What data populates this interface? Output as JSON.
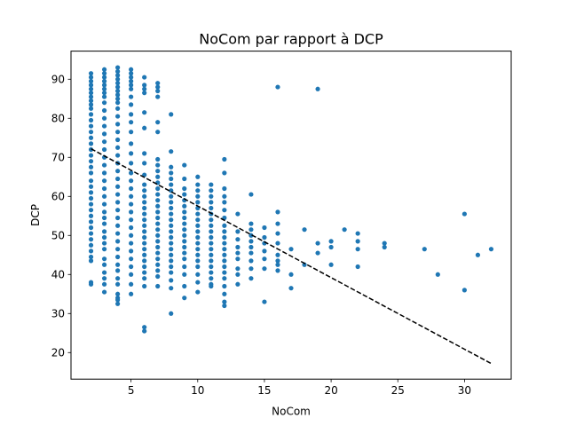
{
  "chart_data": {
    "type": "scatter",
    "title": "NoCom par rapport à DCP",
    "xlabel": "NoCom",
    "ylabel": "DCP",
    "xlim": [
      0.5,
      33.5
    ],
    "ylim": [
      13.2,
      97.2
    ],
    "xticks": [
      5,
      10,
      15,
      20,
      25,
      30
    ],
    "yticks": [
      20,
      30,
      40,
      50,
      60,
      70,
      80,
      90
    ],
    "grid": false,
    "point_color": "#1f77b4",
    "trend_color": "#000000",
    "trend_line": {
      "style": "dashed",
      "points": [
        [
          2,
          72.2
        ],
        [
          32,
          17.2
        ]
      ]
    },
    "points": [
      [
        2,
        91.5
      ],
      [
        2,
        90.5
      ],
      [
        2,
        89.5
      ],
      [
        2,
        88.5
      ],
      [
        2,
        87.5
      ],
      [
        2,
        86.5
      ],
      [
        2,
        85.5
      ],
      [
        2,
        84.5
      ],
      [
        2,
        83.5
      ],
      [
        2,
        82.5
      ],
      [
        2,
        81
      ],
      [
        2,
        79.5
      ],
      [
        2,
        78
      ],
      [
        2,
        76.5
      ],
      [
        2,
        75
      ],
      [
        2,
        73.5
      ],
      [
        2,
        72
      ],
      [
        2,
        70.5
      ],
      [
        2,
        69
      ],
      [
        2,
        67.5
      ],
      [
        2,
        66
      ],
      [
        2,
        64
      ],
      [
        2,
        62.5
      ],
      [
        2,
        61
      ],
      [
        2,
        59.5
      ],
      [
        2,
        58
      ],
      [
        2,
        56.5
      ],
      [
        2,
        55
      ],
      [
        2,
        53.5
      ],
      [
        2,
        52
      ],
      [
        2,
        50.5
      ],
      [
        2,
        49
      ],
      [
        2,
        47.5
      ],
      [
        2,
        46
      ],
      [
        2,
        44.5
      ],
      [
        2,
        43.5
      ],
      [
        2,
        38
      ],
      [
        2,
        37.5
      ],
      [
        3,
        92.5
      ],
      [
        3,
        91.5
      ],
      [
        3,
        90.5
      ],
      [
        3,
        89.5
      ],
      [
        3,
        88.5
      ],
      [
        3,
        87.5
      ],
      [
        3,
        86.5
      ],
      [
        3,
        85.5
      ],
      [
        3,
        84
      ],
      [
        3,
        82
      ],
      [
        3,
        80
      ],
      [
        3,
        78
      ],
      [
        3,
        76
      ],
      [
        3,
        74
      ],
      [
        3,
        72
      ],
      [
        3,
        70
      ],
      [
        3,
        68
      ],
      [
        3,
        66
      ],
      [
        3,
        64
      ],
      [
        3,
        62
      ],
      [
        3,
        60
      ],
      [
        3,
        58
      ],
      [
        3,
        56
      ],
      [
        3,
        54.5
      ],
      [
        3,
        53
      ],
      [
        3,
        51
      ],
      [
        3,
        49.5
      ],
      [
        3,
        48
      ],
      [
        3,
        46.5
      ],
      [
        3,
        44
      ],
      [
        3,
        42.5
      ],
      [
        3,
        40.5
      ],
      [
        3,
        39
      ],
      [
        3,
        37.5
      ],
      [
        3,
        35.5
      ],
      [
        4,
        93
      ],
      [
        4,
        92
      ],
      [
        4,
        91
      ],
      [
        4,
        90
      ],
      [
        4,
        89
      ],
      [
        4,
        88
      ],
      [
        4,
        87
      ],
      [
        4,
        86
      ],
      [
        4,
        85
      ],
      [
        4,
        84
      ],
      [
        4,
        82.5
      ],
      [
        4,
        80.5
      ],
      [
        4,
        78.5
      ],
      [
        4,
        76.5
      ],
      [
        4,
        74.5
      ],
      [
        4,
        72.5
      ],
      [
        4,
        70.5
      ],
      [
        4,
        68.5
      ],
      [
        4,
        66.5
      ],
      [
        4,
        64.5
      ],
      [
        4,
        62.5
      ],
      [
        4,
        60.5
      ],
      [
        4,
        58.5
      ],
      [
        4,
        56.5
      ],
      [
        4,
        54.5
      ],
      [
        4,
        52.5
      ],
      [
        4,
        50.5
      ],
      [
        4,
        48.5
      ],
      [
        4,
        46.5
      ],
      [
        4,
        44.5
      ],
      [
        4,
        42.5
      ],
      [
        4,
        41
      ],
      [
        4,
        39
      ],
      [
        4,
        37.5
      ],
      [
        4,
        35
      ],
      [
        4,
        34
      ],
      [
        4,
        33.5
      ],
      [
        4,
        32.5
      ],
      [
        5,
        92.5
      ],
      [
        5,
        91.5
      ],
      [
        5,
        90.5
      ],
      [
        5,
        89.5
      ],
      [
        5,
        88.5
      ],
      [
        5,
        87.5
      ],
      [
        5,
        85.5
      ],
      [
        5,
        83.5
      ],
      [
        5,
        81
      ],
      [
        5,
        79
      ],
      [
        5,
        76.5
      ],
      [
        5,
        73.5
      ],
      [
        5,
        71
      ],
      [
        5,
        68.5
      ],
      [
        5,
        66
      ],
      [
        5,
        64
      ],
      [
        5,
        62
      ],
      [
        5,
        60
      ],
      [
        5,
        58
      ],
      [
        5,
        56
      ],
      [
        5,
        54
      ],
      [
        5,
        52
      ],
      [
        5,
        50
      ],
      [
        5,
        48
      ],
      [
        5,
        46
      ],
      [
        5,
        44
      ],
      [
        5,
        42
      ],
      [
        5,
        40
      ],
      [
        5,
        37.5
      ],
      [
        5,
        35
      ],
      [
        6,
        90.5
      ],
      [
        6,
        88.5
      ],
      [
        6,
        87.5
      ],
      [
        6,
        86.5
      ],
      [
        6,
        81.5
      ],
      [
        6,
        77.5
      ],
      [
        6,
        71
      ],
      [
        6,
        68.5
      ],
      [
        6,
        65.5
      ],
      [
        6,
        63
      ],
      [
        6,
        61.5
      ],
      [
        6,
        60
      ],
      [
        6,
        58.5
      ],
      [
        6,
        57
      ],
      [
        6,
        55.5
      ],
      [
        6,
        54
      ],
      [
        6,
        52.5
      ],
      [
        6,
        51
      ],
      [
        6,
        49.5
      ],
      [
        6,
        48
      ],
      [
        6,
        46.5
      ],
      [
        6,
        45
      ],
      [
        6,
        43.5
      ],
      [
        6,
        42
      ],
      [
        6,
        40.5
      ],
      [
        6,
        39
      ],
      [
        6,
        37
      ],
      [
        6,
        26.5
      ],
      [
        6,
        25.5
      ],
      [
        7,
        89
      ],
      [
        7,
        88
      ],
      [
        7,
        87
      ],
      [
        7,
        85.5
      ],
      [
        7,
        79
      ],
      [
        7,
        76.5
      ],
      [
        7,
        69.5
      ],
      [
        7,
        68
      ],
      [
        7,
        66.5
      ],
      [
        7,
        65
      ],
      [
        7,
        63.5
      ],
      [
        7,
        62
      ],
      [
        7,
        60.5
      ],
      [
        7,
        59
      ],
      [
        7,
        57.5
      ],
      [
        7,
        56
      ],
      [
        7,
        54.5
      ],
      [
        7,
        53
      ],
      [
        7,
        51.5
      ],
      [
        7,
        50
      ],
      [
        7,
        48.5
      ],
      [
        7,
        47
      ],
      [
        7,
        45.5
      ],
      [
        7,
        44
      ],
      [
        7,
        42.5
      ],
      [
        7,
        41
      ],
      [
        7,
        39.5
      ],
      [
        7,
        37
      ],
      [
        8,
        81
      ],
      [
        8,
        71.5
      ],
      [
        8,
        67.5
      ],
      [
        8,
        66
      ],
      [
        8,
        64.5
      ],
      [
        8,
        63
      ],
      [
        8,
        61.5
      ],
      [
        8,
        60
      ],
      [
        8,
        58.5
      ],
      [
        8,
        57
      ],
      [
        8,
        55.5
      ],
      [
        8,
        54
      ],
      [
        8,
        52.5
      ],
      [
        8,
        51
      ],
      [
        8,
        49.5
      ],
      [
        8,
        48
      ],
      [
        8,
        46.5
      ],
      [
        8,
        45
      ],
      [
        8,
        43.5
      ],
      [
        8,
        42
      ],
      [
        8,
        40.5
      ],
      [
        8,
        38.5
      ],
      [
        8,
        36.5
      ],
      [
        8,
        30
      ],
      [
        9,
        68
      ],
      [
        9,
        64.5
      ],
      [
        9,
        62
      ],
      [
        9,
        60.5
      ],
      [
        9,
        59
      ],
      [
        9,
        57.5
      ],
      [
        9,
        56
      ],
      [
        9,
        54.5
      ],
      [
        9,
        53
      ],
      [
        9,
        51.5
      ],
      [
        9,
        50
      ],
      [
        9,
        48.5
      ],
      [
        9,
        47
      ],
      [
        9,
        45.5
      ],
      [
        9,
        44
      ],
      [
        9,
        42
      ],
      [
        9,
        40
      ],
      [
        9,
        37
      ],
      [
        9,
        34
      ],
      [
        10,
        65
      ],
      [
        10,
        63
      ],
      [
        10,
        61.5
      ],
      [
        10,
        60
      ],
      [
        10,
        58.5
      ],
      [
        10,
        57
      ],
      [
        10,
        55.5
      ],
      [
        10,
        54
      ],
      [
        10,
        52.5
      ],
      [
        10,
        51
      ],
      [
        10,
        49.5
      ],
      [
        10,
        48
      ],
      [
        10,
        46.5
      ],
      [
        10,
        45
      ],
      [
        10,
        43.5
      ],
      [
        10,
        42
      ],
      [
        10,
        40
      ],
      [
        10,
        38
      ],
      [
        10,
        35.5
      ],
      [
        11,
        63
      ],
      [
        11,
        61.5
      ],
      [
        11,
        60
      ],
      [
        11,
        58.5
      ],
      [
        11,
        57
      ],
      [
        11,
        55.5
      ],
      [
        11,
        54
      ],
      [
        11,
        52.5
      ],
      [
        11,
        51
      ],
      [
        11,
        49.5
      ],
      [
        11,
        48
      ],
      [
        11,
        46.5
      ],
      [
        11,
        45
      ],
      [
        11,
        43.5
      ],
      [
        11,
        42
      ],
      [
        11,
        40.5
      ],
      [
        11,
        39
      ],
      [
        11,
        37.5
      ],
      [
        11,
        37
      ],
      [
        12,
        69.5
      ],
      [
        12,
        66
      ],
      [
        12,
        62
      ],
      [
        12,
        60
      ],
      [
        12,
        58.5
      ],
      [
        12,
        56.5
      ],
      [
        12,
        54.5
      ],
      [
        12,
        52.5
      ],
      [
        12,
        51
      ],
      [
        12,
        49.5
      ],
      [
        12,
        48
      ],
      [
        12,
        46.5
      ],
      [
        12,
        45
      ],
      [
        12,
        43.5
      ],
      [
        12,
        42
      ],
      [
        12,
        40.5
      ],
      [
        12,
        39
      ],
      [
        12,
        37
      ],
      [
        12,
        35
      ],
      [
        12,
        33
      ],
      [
        12,
        32
      ],
      [
        13,
        55.5
      ],
      [
        13,
        51
      ],
      [
        13,
        49
      ],
      [
        13,
        47
      ],
      [
        13,
        45.5
      ],
      [
        13,
        44
      ],
      [
        13,
        41.5
      ],
      [
        13,
        40
      ],
      [
        13,
        37.5
      ],
      [
        14,
        60.5
      ],
      [
        14,
        53
      ],
      [
        14,
        51.5
      ],
      [
        14,
        50
      ],
      [
        14,
        48.5
      ],
      [
        14,
        47
      ],
      [
        14,
        45.5
      ],
      [
        14,
        43.5
      ],
      [
        14,
        41.5
      ],
      [
        14,
        39
      ],
      [
        15,
        52
      ],
      [
        15,
        49.5
      ],
      [
        15,
        48
      ],
      [
        15,
        46
      ],
      [
        15,
        44
      ],
      [
        15,
        41.5
      ],
      [
        15,
        33
      ],
      [
        16,
        88
      ],
      [
        16,
        56
      ],
      [
        16,
        53
      ],
      [
        16,
        50.5
      ],
      [
        16,
        48
      ],
      [
        16,
        45
      ],
      [
        16,
        43.5
      ],
      [
        16,
        42.5
      ],
      [
        16,
        41
      ],
      [
        17,
        46.5
      ],
      [
        17,
        40
      ],
      [
        17,
        36.5
      ],
      [
        18,
        51.5
      ],
      [
        18,
        42.5
      ],
      [
        19,
        87.5
      ],
      [
        19,
        48
      ],
      [
        19,
        45.5
      ],
      [
        20,
        48.5
      ],
      [
        20,
        47
      ],
      [
        20,
        42.5
      ],
      [
        21,
        51.5
      ],
      [
        22,
        50.5
      ],
      [
        22,
        48.5
      ],
      [
        22,
        46.5
      ],
      [
        22,
        42
      ],
      [
        24,
        48
      ],
      [
        24,
        47
      ],
      [
        27,
        46.5
      ],
      [
        28,
        40
      ],
      [
        30,
        55.5
      ],
      [
        30,
        36
      ],
      [
        31,
        45
      ],
      [
        32,
        46.5
      ]
    ]
  }
}
